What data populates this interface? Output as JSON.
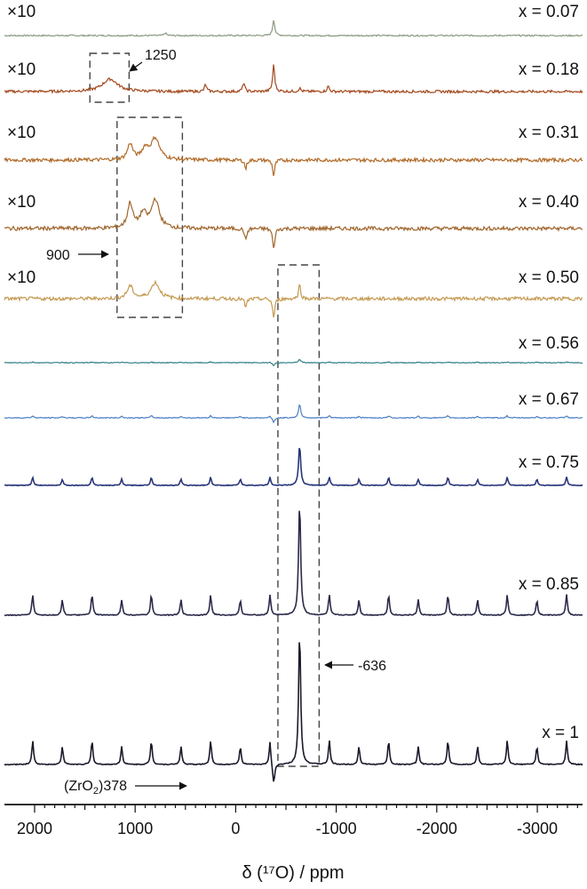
{
  "chart_data": {
    "type": "line",
    "title": "",
    "xlabel": "δ (¹⁷O) / ppm",
    "xlim": [
      2300,
      -3450
    ],
    "x_reversed": true,
    "x_ticks": [
      2000,
      1000,
      0,
      -1000,
      -2000,
      -3000
    ],
    "x_tick_labels": [
      "2000",
      "1000",
      "0",
      "-1000",
      "-2000",
      "-3000"
    ],
    "series": [
      {
        "name": "x = 0.07",
        "scale_label": "×10",
        "color": "#8a9a80",
        "main_peak": -378,
        "main_height": 0.0,
        "sidebands": 0,
        "noise": 0.8,
        "features": [
          {
            "ppm": -378,
            "h": 18
          },
          {
            "ppm": 700,
            "h": 3
          }
        ]
      },
      {
        "name": "x = 0.18",
        "scale_label": "×10",
        "color": "#a3481c",
        "main_peak": -378,
        "main_height": 0.0,
        "sidebands": 0,
        "noise": 1.5,
        "features": [
          {
            "ppm": -378,
            "h": 30
          },
          {
            "ppm": 1250,
            "h": 14,
            "w": 90
          },
          {
            "ppm": -636,
            "h": 4
          },
          {
            "ppm": -80,
            "h": 10
          },
          {
            "ppm": 300,
            "h": 8
          },
          {
            "ppm": -920,
            "h": 6
          }
        ]
      },
      {
        "name": "x = 0.31",
        "scale_label": "×10",
        "color": "#b06a28",
        "main_peak": -378,
        "main_height": 0.0,
        "sidebands": 0,
        "noise": 2.0,
        "features": [
          {
            "ppm": -378,
            "h": -18
          },
          {
            "ppm": 800,
            "h": 24,
            "w": 50
          },
          {
            "ppm": 1050,
            "h": 18,
            "w": 30
          },
          {
            "ppm": 900,
            "h": 12,
            "w": 40
          },
          {
            "ppm": -100,
            "h": -10
          }
        ]
      },
      {
        "name": "x = 0.40",
        "scale_label": "×10",
        "color": "#a0652c",
        "main_peak": -378,
        "main_height": 0.0,
        "sidebands": 0,
        "noise": 2.2,
        "features": [
          {
            "ppm": -378,
            "h": -24
          },
          {
            "ppm": 800,
            "h": 32,
            "w": 45
          },
          {
            "ppm": 1050,
            "h": 28,
            "w": 30
          },
          {
            "ppm": 920,
            "h": 16,
            "w": 40
          },
          {
            "ppm": -100,
            "h": -14
          }
        ]
      },
      {
        "name": "x = 0.50",
        "scale_label": "×10",
        "color": "#c49a52",
        "main_peak": -378,
        "main_height": 0.0,
        "sidebands": 0,
        "noise": 2.0,
        "features": [
          {
            "ppm": -378,
            "h": -22
          },
          {
            "ppm": 800,
            "h": 18,
            "w": 50
          },
          {
            "ppm": 1050,
            "h": 14,
            "w": 35
          },
          {
            "ppm": -636,
            "h": 16
          },
          {
            "ppm": -100,
            "h": -10
          }
        ]
      },
      {
        "name": "x = 0.56",
        "scale_label": "",
        "color": "#2f7f86",
        "main_peak": -636,
        "main_height": 4,
        "sidebands": 0.2,
        "noise": 0.4,
        "features": [
          {
            "ppm": -378,
            "h": -3
          }
        ]
      },
      {
        "name": "x = 0.67",
        "scale_label": "",
        "color": "#4a7ec4",
        "main_peak": -636,
        "main_height": 16,
        "sidebands": 0.15,
        "noise": 0.5,
        "features": [
          {
            "ppm": -378,
            "h": -5
          }
        ]
      },
      {
        "name": "x = 0.75",
        "scale_label": "",
        "color": "#28357a",
        "main_peak": -636,
        "main_height": 46,
        "sidebands": 0.2,
        "noise": 0.4,
        "features": []
      },
      {
        "name": "x = 0.85",
        "scale_label": "",
        "color": "#2b2a4a",
        "main_peak": -636,
        "main_height": 128,
        "sidebands": 0.18,
        "noise": 0.5,
        "features": []
      },
      {
        "name": "x = 1",
        "scale_label": "",
        "color": "#1c1a2a",
        "main_peak": -636,
        "main_height": 150,
        "sidebands": 0.18,
        "noise": 0.5,
        "features": [
          {
            "ppm": -378,
            "h": -22
          }
        ]
      }
    ],
    "annotations": [
      {
        "id": "a1250",
        "text": "1250"
      },
      {
        "id": "a900",
        "text": "900"
      },
      {
        "id": "a636",
        "text": "-636"
      },
      {
        "id": "a378",
        "text_prefix": "(ZrO",
        "text_sub": "2",
        "text_suffix": ")378"
      }
    ],
    "grid": false,
    "legend": "none"
  }
}
